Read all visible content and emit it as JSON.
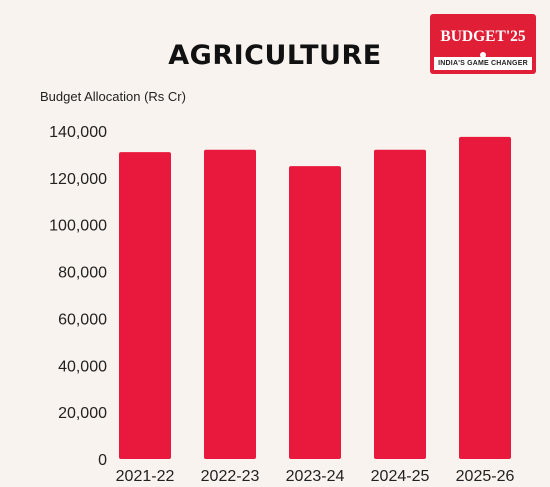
{
  "header": {
    "title": "AGRICULTURE",
    "badge_main": "BUDGET'25",
    "badge_sub": "INDIA'S GAME CHANGER"
  },
  "colors": {
    "background": "#f8f3ef",
    "bar": "#e8193c",
    "badge": "#e01e36"
  },
  "chart_data": {
    "type": "bar",
    "title": "AGRICULTURE",
    "ylabel": "Budget Allocation (Rs Cr)",
    "xlabel": "",
    "categories": [
      "2021-22",
      "2022-23",
      "2023-24",
      "2024-25",
      "2025-26"
    ],
    "values": [
      131000,
      132000,
      125000,
      132000,
      137500
    ],
    "ylim": [
      0,
      140000
    ],
    "yticks": [
      0,
      20000,
      40000,
      60000,
      80000,
      100000,
      120000,
      140000
    ],
    "ytick_labels": [
      "0",
      "20,000",
      "40,000",
      "60,000",
      "80,000",
      "100,000",
      "120,000",
      "140,000"
    ],
    "grid": false,
    "legend": "none"
  }
}
